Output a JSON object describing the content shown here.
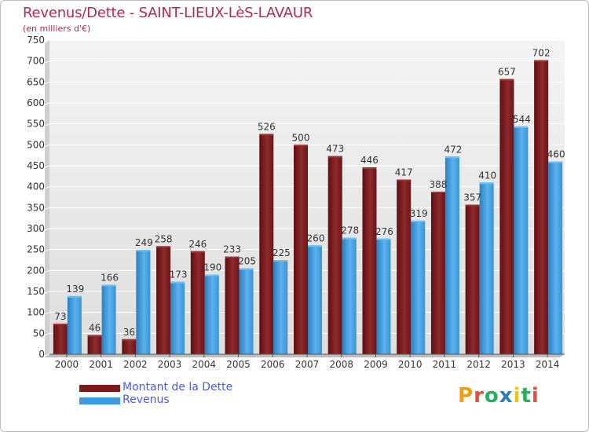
{
  "header": {
    "title": "Revenus/Dette - SAINT-LIEUX-LèS-LAVAUR",
    "subtitle": "(en milliers d'€)"
  },
  "legend": {
    "items": [
      {
        "label": "Montant de la Dette",
        "color": "#7a1a1a"
      },
      {
        "label": "Revenus",
        "color": "#3d9ce0"
      }
    ]
  },
  "logo": {
    "text": "Proxiti",
    "letters": [
      {
        "ch": "P",
        "color": "#f39c12"
      },
      {
        "ch": "r",
        "color": "#e74c3c"
      },
      {
        "ch": "o",
        "color": "#27ae60"
      },
      {
        "ch": "x",
        "color": "#2980b9"
      },
      {
        "ch": "i",
        "color": "#f1c40f"
      },
      {
        "ch": "t",
        "color": "#27ae60"
      },
      {
        "ch": "i",
        "color": "#e74c3c"
      }
    ]
  },
  "chart_data": {
    "type": "bar",
    "title": "Revenus/Dette - SAINT-LIEUX-LèS-LAVAUR",
    "subtitle": "(en milliers d'€)",
    "categories": [
      "2000",
      "2001",
      "2002",
      "2003",
      "2004",
      "2005",
      "2006",
      "2007",
      "2008",
      "2009",
      "2010",
      "2011",
      "2012",
      "2013",
      "2014"
    ],
    "series": [
      {
        "name": "Montant de la Dette",
        "color": "#7a1a1a",
        "values": [
          73,
          46,
          36,
          258,
          246,
          233,
          526,
          500,
          473,
          446,
          417,
          388,
          357,
          657,
          702
        ]
      },
      {
        "name": "Revenus",
        "color": "#3d9ce0",
        "values": [
          139,
          166,
          249,
          173,
          190,
          205,
          225,
          260,
          278,
          276,
          319,
          472,
          410,
          544,
          460
        ]
      }
    ],
    "ylim": [
      0,
      750
    ],
    "yticks": [
      0,
      50,
      100,
      150,
      200,
      250,
      300,
      350,
      400,
      450,
      500,
      550,
      600,
      650,
      700,
      750
    ],
    "grid": true,
    "legend_position": "bottom-left"
  }
}
